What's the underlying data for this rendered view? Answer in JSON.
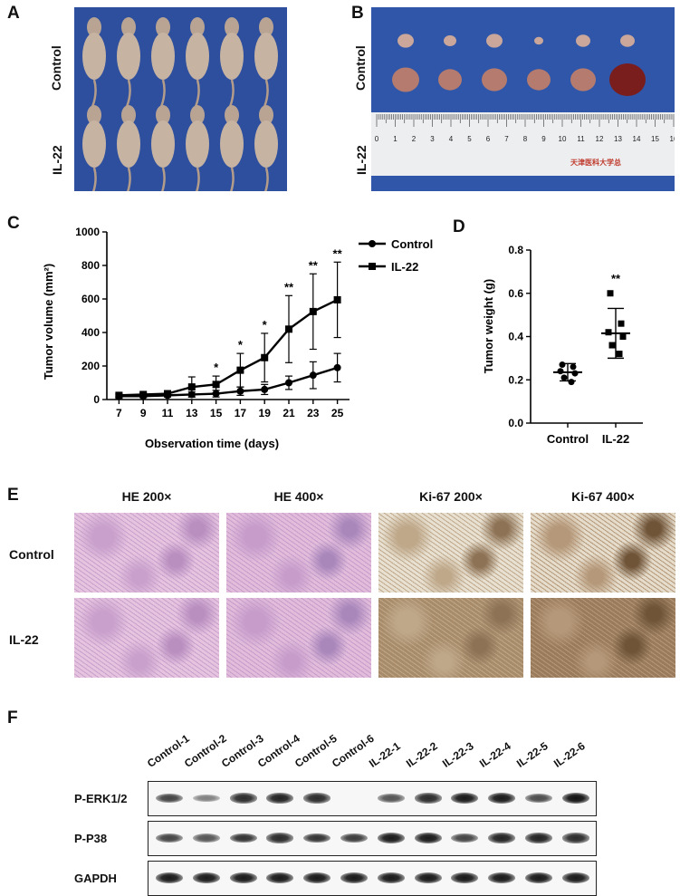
{
  "panels": {
    "A": "A",
    "B": "B",
    "C": "C",
    "D": "D",
    "E": "E",
    "F": "F"
  },
  "panel_a": {
    "rows": [
      "Control",
      "IL-22"
    ],
    "mice_per_row": 6
  },
  "panel_b": {
    "rows": [
      "Control",
      "IL-22"
    ],
    "tumors_per_row": 6,
    "ruler_text": "天津医科大学总",
    "ruler_unit": "cm"
  },
  "chart_data": [
    {
      "type": "line",
      "panel": "C",
      "xlabel": "Observation time (days)",
      "ylabel": "Tumor volume (mm²)",
      "x": [
        7,
        9,
        11,
        13,
        15,
        17,
        19,
        21,
        23,
        25
      ],
      "xlim": [
        6,
        26
      ],
      "ylim": [
        0,
        1000
      ],
      "yticks": [
        0,
        200,
        400,
        600,
        800,
        1000
      ],
      "legend": "top-right",
      "series": [
        {
          "name": "Control",
          "marker": "circle",
          "values": [
            20,
            20,
            25,
            30,
            35,
            50,
            60,
            100,
            145,
            190
          ],
          "err": [
            8,
            8,
            10,
            15,
            20,
            25,
            30,
            40,
            80,
            85
          ]
        },
        {
          "name": "IL-22",
          "marker": "square",
          "values": [
            25,
            30,
            35,
            75,
            90,
            175,
            250,
            420,
            525,
            595
          ],
          "err": [
            10,
            10,
            15,
            60,
            50,
            100,
            145,
            200,
            225,
            225
          ]
        }
      ],
      "annotations": [
        {
          "x": 15,
          "text": "*"
        },
        {
          "x": 17,
          "text": "*"
        },
        {
          "x": 19,
          "text": "*"
        },
        {
          "x": 21,
          "text": "**"
        },
        {
          "x": 23,
          "text": "**"
        },
        {
          "x": 25,
          "text": "**"
        }
      ]
    },
    {
      "type": "scatter",
      "panel": "D",
      "ylabel": "Tumor weight (g)",
      "categories": [
        "Control",
        "IL-22"
      ],
      "ylim": [
        0,
        0.8
      ],
      "yticks": [
        "0.0",
        "0.2",
        "0.4",
        "0.6",
        "0.8"
      ],
      "groups": [
        {
          "name": "Control",
          "marker": "circle",
          "points": [
            0.27,
            0.26,
            0.24,
            0.23,
            0.21,
            0.19
          ],
          "mean": 0.235,
          "sd_low": 0.195,
          "sd_high": 0.275
        },
        {
          "name": "IL-22",
          "marker": "square",
          "points": [
            0.6,
            0.46,
            0.42,
            0.4,
            0.36,
            0.32
          ],
          "mean": 0.415,
          "sd_low": 0.3,
          "sd_high": 0.53
        }
      ],
      "annotations": [
        {
          "category": "IL-22",
          "text": "**"
        }
      ]
    }
  ],
  "panel_e": {
    "columns": [
      "HE 200×",
      "HE 400×",
      "Ki-67 200×",
      "Ki-67 400×"
    ],
    "rows": [
      "Control",
      "IL-22"
    ]
  },
  "panel_f": {
    "lanes": [
      "Control-1",
      "Control-2",
      "Control-3",
      "Control-4",
      "Control-5",
      "Control-6",
      "IL-22-1",
      "IL-22-2",
      "IL-22-3",
      "IL-22-4",
      "IL-22-5",
      "IL-22-6"
    ],
    "blots": [
      {
        "name": "P-ERK1/2",
        "intensity": [
          0.7,
          0.35,
          0.85,
          0.9,
          0.85,
          0.0,
          0.6,
          0.85,
          0.95,
          0.95,
          0.65,
          1.0
        ]
      },
      {
        "name": "P-P38",
        "intensity": [
          0.7,
          0.6,
          0.8,
          0.85,
          0.8,
          0.75,
          0.95,
          0.95,
          0.7,
          0.9,
          0.9,
          0.85
        ]
      },
      {
        "name": "GAPDH",
        "intensity": [
          0.95,
          0.95,
          0.95,
          0.95,
          0.95,
          0.95,
          0.95,
          0.95,
          0.95,
          0.95,
          0.95,
          0.95
        ]
      }
    ]
  }
}
